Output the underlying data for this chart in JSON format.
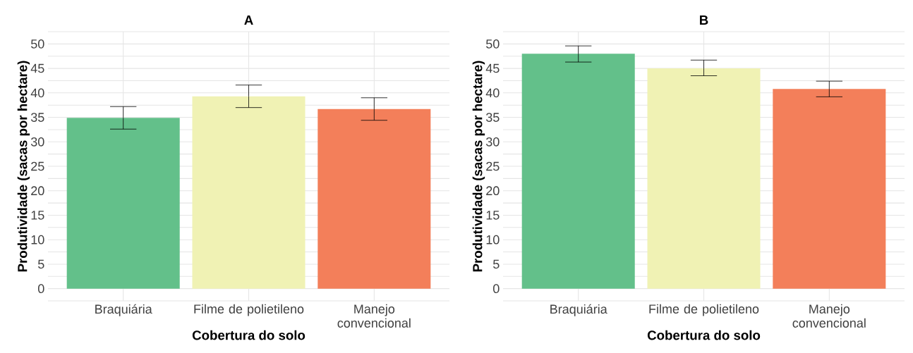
{
  "chart_data": [
    {
      "type": "bar",
      "title": "A",
      "xlabel": "Cobertura do solo",
      "ylabel": "Produtividade (sacas por hectare)",
      "categories": [
        "Braquiária",
        "Filme de polietileno",
        "Manejo convencional"
      ],
      "values": [
        34.9,
        39.3,
        36.7
      ],
      "colors": [
        "#63c08a",
        "#f0f2b4",
        "#f37f5a"
      ],
      "errors": [
        [
          32.6,
          37.2
        ],
        [
          37.0,
          41.6
        ],
        [
          34.4,
          39.0
        ]
      ],
      "ylim": [
        -2.5,
        52.5
      ],
      "yticks": [
        {
          "value": -2.5,
          "label": null
        },
        0,
        {
          "value": 2.5,
          "label": null
        },
        5,
        {
          "value": 7.5,
          "label": null
        },
        10,
        {
          "value": 12.5,
          "label": null
        },
        15,
        {
          "value": 17.5,
          "label": null
        },
        20,
        {
          "value": 22.5,
          "label": null
        },
        25,
        {
          "value": 27.5,
          "label": null
        },
        30,
        {
          "value": 32.5,
          "label": null
        },
        35,
        {
          "value": 37.5,
          "label": null
        },
        40,
        {
          "value": 42.5,
          "label": null
        },
        45,
        {
          "value": 47.5,
          "label": null
        },
        50,
        {
          "value": 52.5,
          "label": null
        }
      ],
      "grid": true
    },
    {
      "type": "bar",
      "title": "B",
      "xlabel": "Cobertura do solo",
      "ylabel": "Produtividade (sacas por hectare)",
      "categories": [
        "Braquiária",
        "Filme de polietileno",
        "Manejo convencional"
      ],
      "values": [
        48.0,
        45.0,
        40.8
      ],
      "colors": [
        "#63c08a",
        "#f0f2b4",
        "#f37f5a"
      ],
      "errors": [
        [
          46.3,
          49.6
        ],
        [
          43.5,
          46.7
        ],
        [
          39.2,
          42.4
        ]
      ],
      "ylim": [
        -2.5,
        52.5
      ],
      "yticks": [
        {
          "value": -2.5,
          "label": null
        },
        0,
        {
          "value": 2.5,
          "label": null
        },
        5,
        {
          "value": 7.5,
          "label": null
        },
        10,
        {
          "value": 12.5,
          "label": null
        },
        15,
        {
          "value": 17.5,
          "label": null
        },
        20,
        {
          "value": 22.5,
          "label": null
        },
        25,
        {
          "value": 27.5,
          "label": null
        },
        30,
        {
          "value": 32.5,
          "label": null
        },
        35,
        {
          "value": 37.5,
          "label": null
        },
        40,
        {
          "value": 42.5,
          "label": null
        },
        45,
        {
          "value": 47.5,
          "label": null
        },
        50,
        {
          "value": 52.5,
          "label": null
        }
      ],
      "grid": true
    }
  ]
}
